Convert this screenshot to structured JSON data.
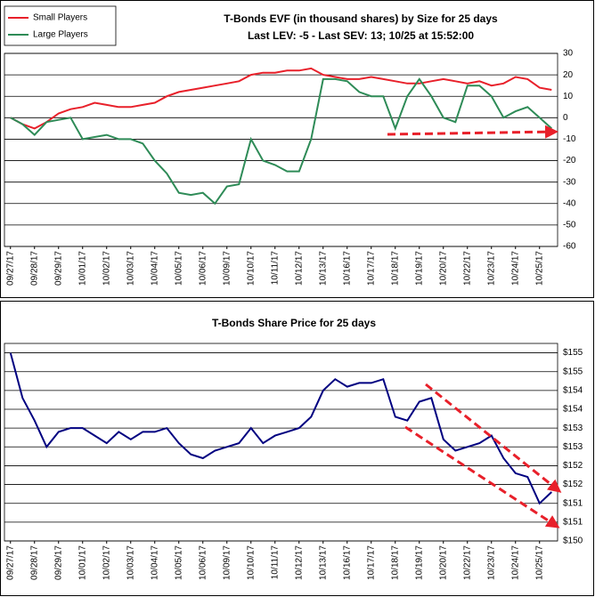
{
  "chart_data": [
    {
      "type": "line",
      "title": "T-Bonds EVF (in thousand shares) by Size for 25 days",
      "subtitle": "Last LEV: -5 - Last SEV: 13; 10/25 at 15:52:00",
      "categories": [
        "09/27/17",
        null,
        "09/28/17",
        null,
        "09/29/17",
        null,
        "10/01/17",
        null,
        "10/02/17",
        null,
        "10/03/17",
        null,
        "10/04/17",
        null,
        "10/05/17",
        null,
        "10/06/17",
        null,
        "10/09/17",
        null,
        "10/10/17",
        null,
        "10/11/17",
        null,
        "10/12/17",
        null,
        "10/13/17",
        null,
        "10/16/17",
        null,
        "10/17/17",
        null,
        "10/18/17",
        null,
        "10/19/17",
        null,
        "10/20/17",
        null,
        "10/22/17",
        null,
        "10/23/17",
        null,
        "10/24/17",
        null,
        "10/25/17",
        null
      ],
      "series": [
        {
          "name": "Small Players",
          "color": "#e8202a",
          "values": [
            0,
            -3,
            -5,
            -2,
            2,
            4,
            5,
            7,
            6,
            5,
            5,
            6,
            7,
            10,
            12,
            13,
            14,
            15,
            16,
            17,
            20,
            21,
            21,
            22,
            22,
            23,
            20,
            19,
            18,
            18,
            19,
            18,
            17,
            16,
            16,
            17,
            18,
            17,
            16,
            17,
            15,
            16,
            19,
            18,
            14,
            13
          ]
        },
        {
          "name": "Large Players",
          "color": "#2e8b57",
          "values": [
            0,
            -3,
            -8,
            -2,
            -1,
            0,
            -10,
            -9,
            -8,
            -10,
            -10,
            -12,
            -20,
            -26,
            -35,
            -36,
            -35,
            -40,
            -32,
            -31,
            -10,
            -20,
            -22,
            -25,
            -25,
            -10,
            18,
            18,
            17,
            12,
            10,
            10,
            -5,
            10,
            18,
            10,
            0,
            -2,
            15,
            15,
            10,
            0,
            3,
            5,
            0,
            -5
          ]
        }
      ],
      "ylim": [
        -60,
        30
      ],
      "yticks": [
        -60,
        -50,
        -40,
        -30,
        -20,
        -10,
        0,
        10,
        20,
        30
      ],
      "grid": true,
      "legend": "top-left"
    },
    {
      "type": "line",
      "title": "T-Bonds Share Price for 25 days",
      "categories": [
        "09/27/17",
        null,
        "09/28/17",
        null,
        "09/29/17",
        null,
        "10/01/17",
        null,
        "10/02/17",
        null,
        "10/03/17",
        null,
        "10/04/17",
        null,
        "10/05/17",
        null,
        "10/06/17",
        null,
        "10/09/17",
        null,
        "10/10/17",
        null,
        "10/11/17",
        null,
        "10/12/17",
        null,
        "10/13/17",
        null,
        "10/16/17",
        null,
        "10/17/17",
        null,
        "10/18/17",
        null,
        "10/19/17",
        null,
        "10/20/17",
        null,
        "10/22/17",
        null,
        "10/23/17",
        null,
        "10/24/17",
        null,
        "10/25/17",
        null
      ],
      "series": [
        {
          "name": "T-Bonds",
          "color": "#000080",
          "values": [
            155.0,
            153.8,
            153.2,
            152.5,
            152.9,
            153.0,
            153.0,
            152.8,
            152.6,
            152.9,
            152.7,
            152.9,
            152.9,
            153.0,
            152.6,
            152.3,
            152.2,
            152.4,
            152.5,
            152.6,
            153.0,
            152.6,
            152.8,
            152.9,
            153.0,
            153.3,
            154.0,
            154.3,
            154.1,
            154.2,
            154.2,
            154.3,
            153.3,
            153.2,
            153.7,
            153.8,
            152.7,
            152.4,
            152.5,
            152.6,
            152.8,
            152.2,
            151.8,
            151.7,
            151.0,
            151.3
          ]
        }
      ],
      "ylim": [
        150,
        155.25
      ],
      "yticks": [
        {
          "value": 150,
          "label": "$150"
        },
        {
          "value": 150.5,
          "label": "$151"
        },
        {
          "value": 151,
          "label": "$151"
        },
        {
          "value": 151.5,
          "label": "$152"
        },
        {
          "value": 152,
          "label": "$152"
        },
        {
          "value": 152.5,
          "label": "$153"
        },
        {
          "value": 153,
          "label": "$153"
        },
        {
          "value": 153.5,
          "label": "$154"
        },
        {
          "value": 154,
          "label": "$154"
        },
        {
          "value": 154.5,
          "label": "$155"
        },
        {
          "value": 155,
          "label": "$155"
        }
      ],
      "grid": true
    }
  ]
}
